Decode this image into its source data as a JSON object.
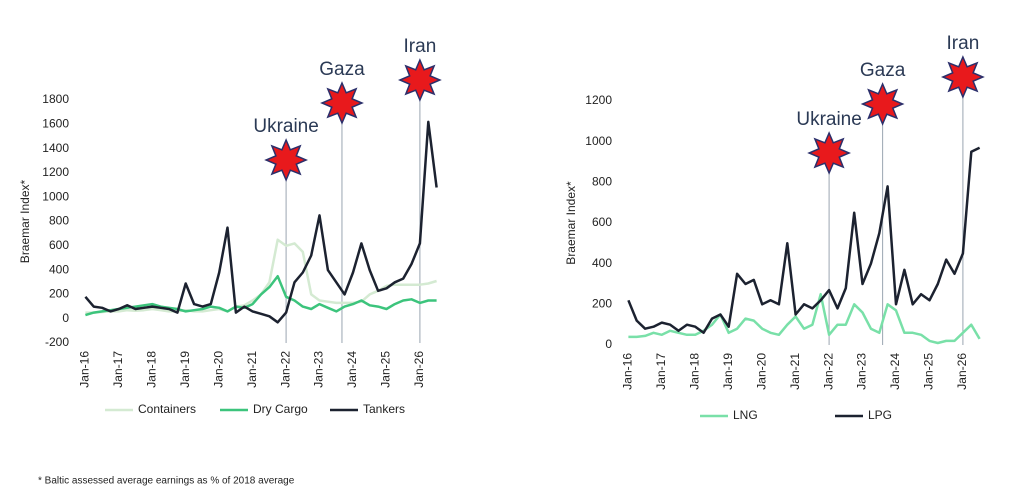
{
  "chart_data": [
    {
      "type": "line",
      "ylabel": "Braemar Index*",
      "x": [
        2016,
        2016.25,
        2016.5,
        2016.75,
        2017,
        2017.25,
        2017.5,
        2017.75,
        2018,
        2018.25,
        2018.5,
        2018.75,
        2019,
        2019.25,
        2019.5,
        2019.75,
        2020,
        2020.25,
        2020.5,
        2020.75,
        2021,
        2021.25,
        2021.5,
        2021.75,
        2022,
        2022.25,
        2022.5,
        2022.75,
        2023,
        2023.25,
        2023.5,
        2023.75,
        2024,
        2024.25,
        2024.5,
        2024.75,
        2025,
        2025.25,
        2025.5,
        2025.75,
        2026,
        2026.25,
        2026.5
      ],
      "xlim": [
        2015.75,
        2026.75
      ],
      "xticks": [
        {
          "value": 2016,
          "label": "Jan-16"
        },
        {
          "value": 2017,
          "label": "Jan-17"
        },
        {
          "value": 2018,
          "label": "Jan-18"
        },
        {
          "value": 2019,
          "label": "Jan-19"
        },
        {
          "value": 2020,
          "label": "Jan-20"
        },
        {
          "value": 2021,
          "label": "Jan-21"
        },
        {
          "value": 2022,
          "label": "Jan-22"
        },
        {
          "value": 2023,
          "label": "Jan-23"
        },
        {
          "value": 2024,
          "label": "Jan-24"
        },
        {
          "value": 2025,
          "label": "Jan-25"
        },
        {
          "value": 2026,
          "label": "Jan-26"
        }
      ],
      "ylim": [
        -200,
        1800
      ],
      "yticks": [
        -200,
        0,
        200,
        400,
        600,
        800,
        1000,
        1200,
        1400,
        1600,
        1800
      ],
      "series": [
        {
          "name": "Containers",
          "color": "#d4ead2",
          "values": [
            50,
            50,
            55,
            60,
            60,
            70,
            65,
            70,
            80,
            70,
            60,
            60,
            70,
            60,
            60,
            70,
            80,
            60,
            100,
            110,
            150,
            200,
            300,
            650,
            600,
            620,
            550,
            200,
            150,
            140,
            130,
            130,
            130,
            140,
            200,
            230,
            270,
            280,
            280,
            280,
            280,
            290,
            310
          ]
        },
        {
          "name": "Dry Cargo",
          "color": "#3cc47c",
          "values": [
            30,
            50,
            60,
            70,
            80,
            90,
            100,
            110,
            120,
            100,
            90,
            80,
            60,
            70,
            80,
            100,
            90,
            60,
            100,
            90,
            120,
            200,
            260,
            350,
            180,
            150,
            100,
            80,
            120,
            90,
            60,
            100,
            120,
            150,
            110,
            100,
            80,
            120,
            150,
            160,
            130,
            150,
            150
          ]
        },
        {
          "name": "Tankers",
          "color": "#1c2230",
          "values": [
            180,
            100,
            90,
            60,
            80,
            110,
            80,
            90,
            100,
            90,
            80,
            50,
            290,
            120,
            100,
            120,
            380,
            750,
            50,
            100,
            60,
            40,
            20,
            -30,
            50,
            300,
            380,
            520,
            850,
            400,
            300,
            200,
            380,
            620,
            400,
            230,
            250,
            300,
            330,
            450,
            620,
            1620,
            1080
          ]
        }
      ],
      "annotations": [
        {
          "label": "Ukraine",
          "x": 2022
        },
        {
          "label": "Gaza",
          "x": 2023.67
        },
        {
          "label": "Iran",
          "x": 2026
        }
      ]
    },
    {
      "type": "line",
      "ylabel": "Braemar Index*",
      "x": [
        2016,
        2016.25,
        2016.5,
        2016.75,
        2017,
        2017.25,
        2017.5,
        2017.75,
        2018,
        2018.25,
        2018.5,
        2018.75,
        2019,
        2019.25,
        2019.5,
        2019.75,
        2020,
        2020.25,
        2020.5,
        2020.75,
        2021,
        2021.25,
        2021.5,
        2021.75,
        2022,
        2022.25,
        2022.5,
        2022.75,
        2023,
        2023.25,
        2023.5,
        2023.75,
        2024,
        2024.25,
        2024.5,
        2024.75,
        2025,
        2025.25,
        2025.5,
        2025.75,
        2026,
        2026.25,
        2026.5
      ],
      "xlim": [
        2015.75,
        2026.75
      ],
      "xticks": [
        {
          "value": 2016,
          "label": "Jan-16"
        },
        {
          "value": 2017,
          "label": "Jan-17"
        },
        {
          "value": 2018,
          "label": "Jan-18"
        },
        {
          "value": 2019,
          "label": "Jan-19"
        },
        {
          "value": 2020,
          "label": "Jan-20"
        },
        {
          "value": 2021,
          "label": "Jan-21"
        },
        {
          "value": 2022,
          "label": "Jan-22"
        },
        {
          "value": 2023,
          "label": "Jan-23"
        },
        {
          "value": 2024,
          "label": "Jan-24"
        },
        {
          "value": 2025,
          "label": "Jan-25"
        },
        {
          "value": 2026,
          "label": "Jan-26"
        }
      ],
      "ylim": [
        0,
        1200
      ],
      "yticks": [
        0,
        200,
        400,
        600,
        800,
        1000,
        1200
      ],
      "series": [
        {
          "name": "LNG",
          "color": "#79e0a8",
          "values": [
            40,
            40,
            45,
            60,
            50,
            70,
            60,
            50,
            50,
            70,
            100,
            150,
            60,
            80,
            130,
            120,
            80,
            60,
            50,
            100,
            140,
            80,
            100,
            250,
            50,
            100,
            100,
            200,
            160,
            80,
            60,
            200,
            170,
            60,
            60,
            50,
            20,
            10,
            20,
            20,
            60,
            100,
            30
          ]
        },
        {
          "name": "LPG",
          "color": "#1c2230",
          "values": [
            220,
            120,
            80,
            90,
            110,
            100,
            70,
            100,
            90,
            60,
            130,
            150,
            90,
            350,
            300,
            320,
            200,
            220,
            200,
            500,
            150,
            200,
            180,
            220,
            270,
            180,
            280,
            650,
            300,
            400,
            550,
            780,
            200,
            370,
            200,
            250,
            220,
            300,
            420,
            350,
            450,
            950,
            970
          ]
        }
      ],
      "annotations": [
        {
          "label": "Ukraine",
          "x": 2022
        },
        {
          "label": "Gaza",
          "x": 2023.6
        },
        {
          "label": "Iran",
          "x": 2026
        }
      ]
    }
  ],
  "footnote": "* Baltic assessed average earnings as % of 2018 average"
}
